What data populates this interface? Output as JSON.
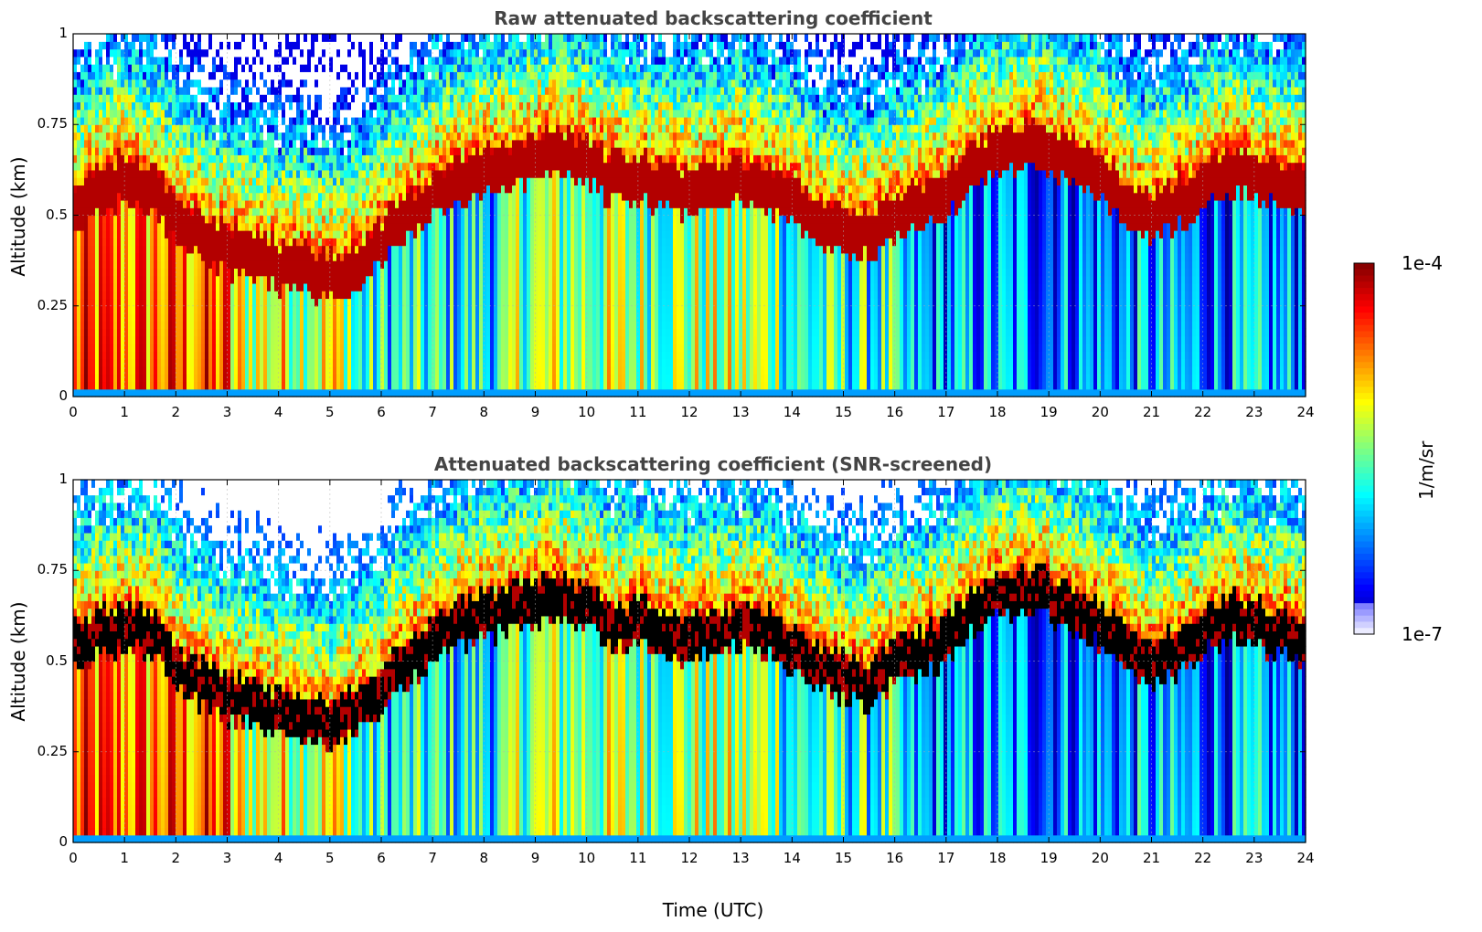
{
  "chart_data": [
    {
      "type": "heatmap",
      "title": "Raw attenuated backscattering coefficient",
      "xlabel": "",
      "ylabel": "Altitude (km)",
      "xlim": [
        0,
        24
      ],
      "ylim": [
        0,
        1
      ],
      "x_ticks": [
        "0",
        "1",
        "2",
        "3",
        "4",
        "5",
        "6",
        "7",
        "8",
        "9",
        "10",
        "11",
        "12",
        "13",
        "14",
        "15",
        "16",
        "17",
        "18",
        "19",
        "20",
        "21",
        "22",
        "23",
        "24"
      ],
      "y_ticks": [
        "0",
        "0.25",
        "0.5",
        "0.75",
        "1"
      ],
      "grid": true,
      "colorscale": "jet",
      "layer_top_km": [
        0.55,
        0.6,
        0.62,
        0.6,
        0.5,
        0.45,
        0.42,
        0.4,
        0.38,
        0.37,
        0.35,
        0.38,
        0.45,
        0.52,
        0.58,
        0.62,
        0.65,
        0.66,
        0.68,
        0.7,
        0.66,
        0.62,
        0.62,
        0.6,
        0.58,
        0.6,
        0.62,
        0.6,
        0.55,
        0.5,
        0.48,
        0.46,
        0.52,
        0.55,
        0.58,
        0.66,
        0.7,
        0.72,
        0.7,
        0.66,
        0.62,
        0.55,
        0.52,
        0.55,
        0.6,
        0.65,
        0.62,
        0.6,
        0.58
      ],
      "ground_band_km": 0.03
    },
    {
      "type": "heatmap",
      "title": "Attenuated backscattering coefficient (SNR-screened)",
      "xlabel": "Time (UTC)",
      "ylabel": "Altitude (km)",
      "xlim": [
        0,
        24
      ],
      "ylim": [
        0,
        1
      ],
      "x_ticks": [
        "0",
        "1",
        "2",
        "3",
        "4",
        "5",
        "6",
        "7",
        "8",
        "9",
        "10",
        "11",
        "12",
        "13",
        "14",
        "15",
        "16",
        "17",
        "18",
        "19",
        "20",
        "21",
        "22",
        "23",
        "24"
      ],
      "y_ticks": [
        "0",
        "0.25",
        "0.5",
        "0.75",
        "1"
      ],
      "grid": true,
      "colorscale": "jet",
      "screened": true
    }
  ],
  "colorbar": {
    "label": "1/m/sr",
    "max_label": "1e-4",
    "min_label": "1e-7",
    "colors": [
      "#800000",
      "#ff0000",
      "#ff8000",
      "#ffff00",
      "#80ff80",
      "#00ffff",
      "#0080ff",
      "#0000ff",
      "#000080"
    ]
  }
}
